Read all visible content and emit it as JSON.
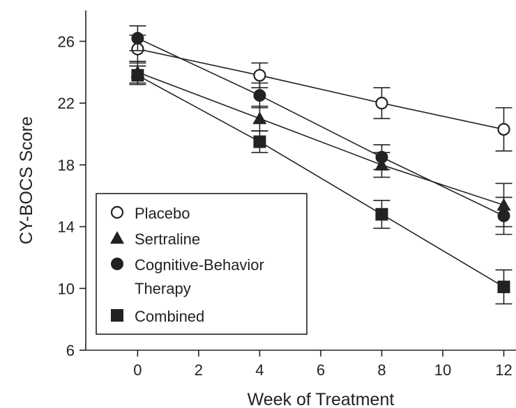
{
  "chart_data": {
    "type": "line",
    "xlabel": "Week of Treatment",
    "ylabel": "CY-BOCS Score",
    "xlim": [
      -1.7,
      12.4
    ],
    "ylim": [
      6,
      28
    ],
    "xticks": [
      0,
      2,
      4,
      6,
      8,
      10,
      12
    ],
    "yticks": [
      6,
      10,
      14,
      18,
      22,
      26
    ],
    "grid": false,
    "legend_position": "bottom-left",
    "x": [
      0,
      4,
      8,
      12
    ],
    "series": [
      {
        "name": "Placebo",
        "marker": "open-circle",
        "values": [
          25.5,
          23.8,
          22.0,
          20.3
        ],
        "errors": [
          0.9,
          0.8,
          1.0,
          1.4
        ]
      },
      {
        "name": "Sertraline",
        "marker": "filled-triangle",
        "values": [
          24.0,
          21.0,
          18.0,
          15.4
        ],
        "errors": [
          0.7,
          0.8,
          0.8,
          1.4
        ]
      },
      {
        "name": "Cognitive-Behavior Therapy",
        "name_lines": [
          "Cognitive-Behavior",
          "Therapy"
        ],
        "marker": "filled-circle",
        "values": [
          26.2,
          22.5,
          18.5,
          14.7
        ],
        "errors": [
          0.8,
          0.8,
          0.8,
          1.2
        ]
      },
      {
        "name": "Combined",
        "marker": "filled-square",
        "values": [
          23.8,
          19.5,
          14.8,
          10.1
        ],
        "errors": [
          0.6,
          0.7,
          0.9,
          1.1
        ]
      }
    ],
    "colors": {
      "ink": "#222222",
      "background": "#ffffff"
    }
  }
}
